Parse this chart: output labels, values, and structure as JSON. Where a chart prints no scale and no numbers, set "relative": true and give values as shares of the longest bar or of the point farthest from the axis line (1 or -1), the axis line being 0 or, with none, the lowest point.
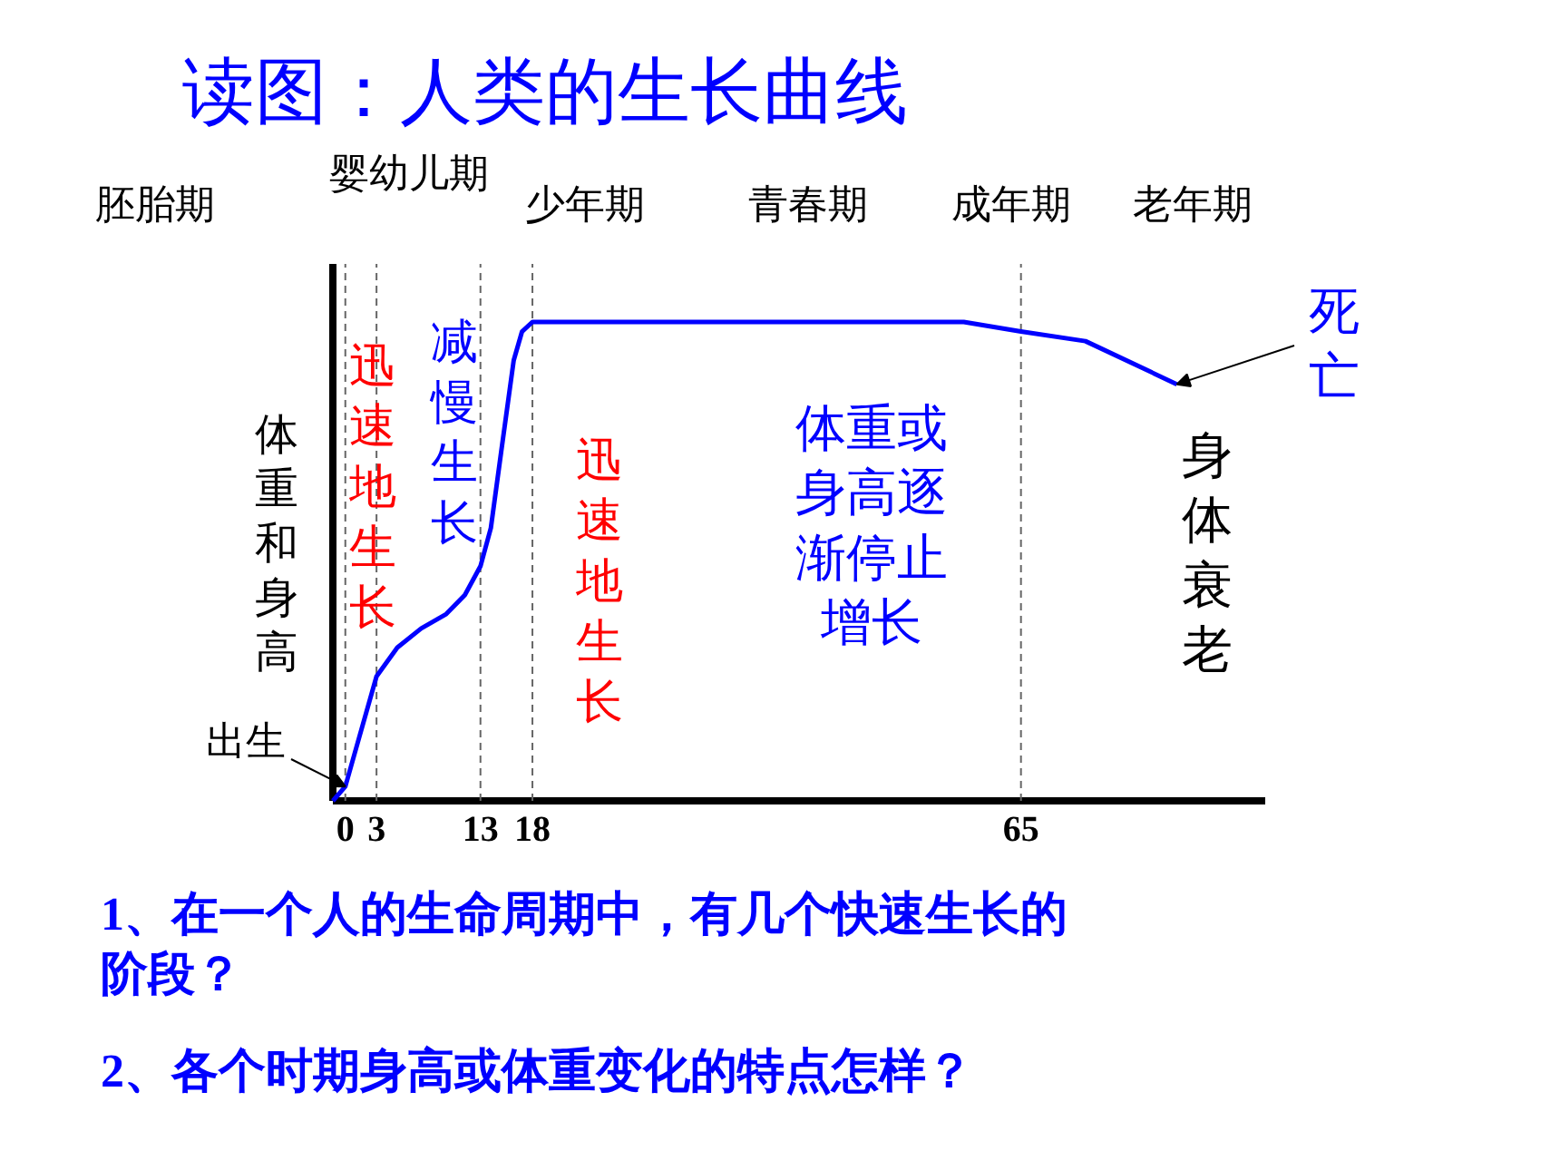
{
  "chart_data": {
    "type": "line",
    "relative": true,
    "title": "读图：人类的生长曲线",
    "ylabel": "体重和身高",
    "x": [
      -1.2,
      0,
      1.3,
      3,
      5.0,
      7.3,
      9.7,
      11.5,
      13,
      14.0,
      15.0,
      16.2,
      17.0,
      18,
      36.7,
      59.5,
      65,
      71.2,
      80
    ],
    "series": [
      {
        "color": "#0000ff",
        "values": [
          0,
          0.03,
          0.13,
          0.26,
          0.32,
          0.36,
          0.39,
          0.43,
          0.49,
          0.57,
          0.73,
          0.92,
          0.98,
          1.0,
          1.0,
          1.0,
          0.98,
          0.96,
          0.87
        ]
      }
    ],
    "xlim": [
      -1.2,
      88.5
    ],
    "xticks": [
      0,
      3,
      13,
      18,
      65
    ],
    "tick_labels": "x",
    "line_style": "solid",
    "ref_lines": [
      {
        "axis": "x",
        "value": 0,
        "line_style": "dashed"
      },
      {
        "axis": "x",
        "value": 3,
        "line_style": "dashed"
      },
      {
        "axis": "x",
        "value": 13,
        "line_style": "dashed"
      },
      {
        "axis": "x",
        "value": 18,
        "line_style": "dashed"
      },
      {
        "axis": "x",
        "value": 65,
        "line_style": "dashed"
      }
    ],
    "annotations": [
      "胚胎期",
      "婴幼儿期",
      "少年期",
      "青春期",
      "成年期",
      "老年期",
      "迅速地生长",
      "减慢生长",
      "迅速地生长",
      "体重或身高逐渐停止增长",
      "身体衰老",
      {
        "text": "出生",
        "x": 0,
        "y": 0.03
      },
      {
        "text": "死亡",
        "x": 80,
        "y": 0.87
      },
      "1、在一个人的生命周期中，有几个快速生长的阶段？",
      "2、各个时期身高或体重变化的特点怎样？"
    ]
  }
}
